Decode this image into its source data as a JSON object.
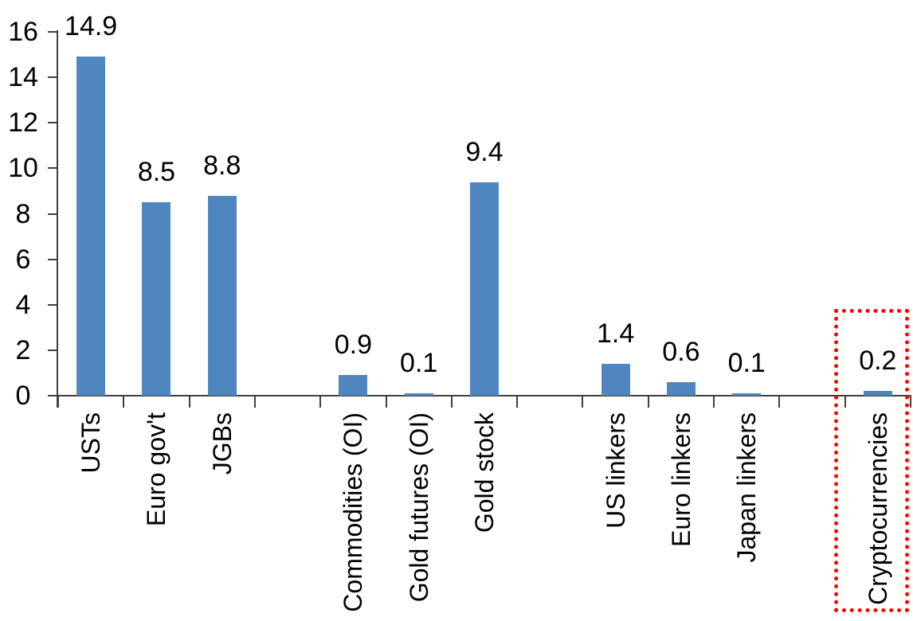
{
  "chart_data": {
    "type": "bar",
    "title": "",
    "xlabel": "",
    "ylabel": "",
    "categories": [
      "USTs",
      "Euro gov't",
      "JGBs",
      "",
      "Commodities (OI)",
      "Gold futures (OI)",
      "Gold stock",
      "",
      "US linkers",
      "Euro linkers",
      "Japan linkers",
      "",
      "Cryptocurrencies"
    ],
    "values": [
      14.9,
      8.5,
      8.8,
      null,
      0.9,
      0.1,
      9.4,
      null,
      1.4,
      0.6,
      0.1,
      null,
      0.2
    ],
    "value_labels": [
      "14.9",
      "8.5",
      "8.8",
      null,
      "0.9",
      "0.1",
      "9.4",
      null,
      "1.4",
      "0.6",
      "0.1",
      null,
      "0.2"
    ],
    "yticks": [
      "0",
      "2",
      "4",
      "6",
      "8",
      "10",
      "12",
      "14",
      "16"
    ],
    "ylim": [
      0,
      16
    ],
    "grid": false,
    "legend": null,
    "bar_color": "#4f86bd",
    "axis_color": "#3f3f3f",
    "text_color": "#000000",
    "highlight": {
      "category": "Cryptocurrencies",
      "shape": "dotted-rectangle",
      "color": "#ff0000"
    }
  }
}
